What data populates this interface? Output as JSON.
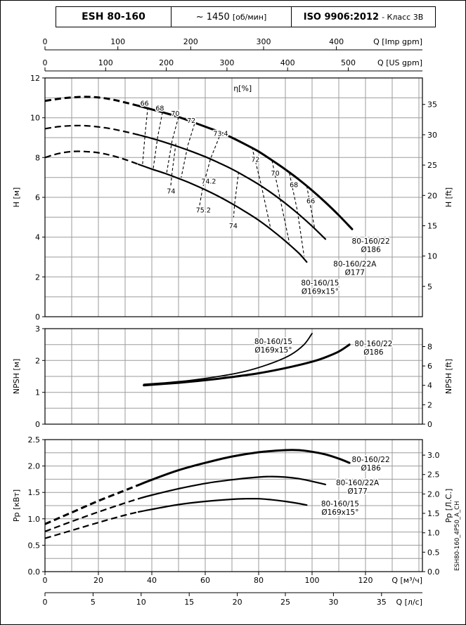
{
  "header": {
    "model": "ESH 80-160",
    "speed_value": "~ 1450",
    "speed_unit": "[об/мин]",
    "standard": "ISO 9906:2012",
    "standard_class": "- Класс 3В"
  },
  "side_label": "ESH80-160_4P50_A_CH",
  "axes": {
    "imp_gpm": {
      "label": "Q [Imp gpm]",
      "ticks": [
        0,
        100,
        200,
        300,
        400
      ],
      "m3h_per_unit": 0.272765
    },
    "us_gpm": {
      "label": "Q [US gpm]",
      "ticks": [
        0,
        100,
        200,
        300,
        400,
        500
      ],
      "m3h_per_unit": 0.227125
    },
    "m3h": {
      "label": "Q [м³/ч]",
      "ticks": [
        0,
        20,
        40,
        60,
        80,
        100,
        120
      ],
      "m3h_per_unit": 1
    },
    "l_s": {
      "label": "Q [л/с]",
      "ticks": [
        0,
        5,
        10,
        15,
        20,
        25,
        30,
        35
      ],
      "m3h_per_unit": 3.6
    }
  },
  "chart_data": [
    {
      "type": "line",
      "id": "head",
      "title": "Head vs flow, rotational speed ~1450 rpm",
      "x_unit": "м³/ч",
      "xlim": [
        0,
        141
      ],
      "ylabel_left": "H [м]",
      "ylabel_right": "H [ft]",
      "ylim": [
        0,
        12
      ],
      "yticks_left": [
        0,
        2,
        4,
        6,
        8,
        10,
        12
      ],
      "yticks_right": [
        5,
        10,
        15,
        20,
        25,
        30,
        35
      ],
      "right_unit_factor": 3.28084,
      "left_decimals": 0,
      "right_decimals": 0,
      "grid_step_y": 1,
      "grid_step_x_m3h": 10,
      "eta_axis_label": {
        "text": "η[%]",
        "q": 74,
        "v": 11.35
      },
      "series": [
        {
          "name": "80-160/22 Ø186",
          "label_lines": [
            "80-160/22",
            "Ø186"
          ],
          "label_at": [
            122,
            3.6
          ],
          "dash_until": 35,
          "width": 3,
          "points": [
            [
              0,
              10.85
            ],
            [
              5,
              10.95
            ],
            [
              10,
              11.02
            ],
            [
              15,
              11.05
            ],
            [
              20,
              11.02
            ],
            [
              25,
              10.92
            ],
            [
              30,
              10.77
            ],
            [
              35,
              10.6
            ],
            [
              40,
              10.42
            ],
            [
              45,
              10.24
            ],
            [
              50,
              10.04
            ],
            [
              55,
              9.8
            ],
            [
              60,
              9.55
            ],
            [
              65,
              9.3
            ],
            [
              70,
              9.0
            ],
            [
              75,
              8.66
            ],
            [
              80,
              8.3
            ],
            [
              85,
              7.86
            ],
            [
              90,
              7.4
            ],
            [
              95,
              6.9
            ],
            [
              100,
              6.35
            ],
            [
              105,
              5.75
            ],
            [
              110,
              5.1
            ],
            [
              115,
              4.4
            ]
          ]
        },
        {
          "name": "80-160/22A Ø177",
          "label_lines": [
            "80-160/22A",
            "Ø177"
          ],
          "label_at": [
            116,
            2.45
          ],
          "dash_until": 35,
          "width": 2.2,
          "points": [
            [
              0,
              9.45
            ],
            [
              5,
              9.55
            ],
            [
              10,
              9.6
            ],
            [
              15,
              9.6
            ],
            [
              20,
              9.54
            ],
            [
              25,
              9.44
            ],
            [
              30,
              9.3
            ],
            [
              35,
              9.14
            ],
            [
              40,
              8.96
            ],
            [
              45,
              8.76
            ],
            [
              50,
              8.54
            ],
            [
              55,
              8.3
            ],
            [
              60,
              8.04
            ],
            [
              65,
              7.74
            ],
            [
              70,
              7.42
            ],
            [
              75,
              7.05
            ],
            [
              80,
              6.65
            ],
            [
              85,
              6.2
            ],
            [
              90,
              5.7
            ],
            [
              95,
              5.15
            ],
            [
              100,
              4.55
            ],
            [
              105,
              3.9
            ]
          ]
        },
        {
          "name": "80-160/15 Ø169x15°",
          "label_lines": [
            "80-160/15",
            "Ø169x15°"
          ],
          "label_at": [
            103,
            1.5
          ],
          "dash_until": 35,
          "width": 2.2,
          "points": [
            [
              0,
              8.0
            ],
            [
              5,
              8.2
            ],
            [
              10,
              8.3
            ],
            [
              15,
              8.3
            ],
            [
              20,
              8.24
            ],
            [
              25,
              8.1
            ],
            [
              30,
              7.9
            ],
            [
              35,
              7.66
            ],
            [
              40,
              7.42
            ],
            [
              45,
              7.2
            ],
            [
              50,
              6.95
            ],
            [
              55,
              6.68
            ],
            [
              60,
              6.38
            ],
            [
              65,
              6.05
            ],
            [
              70,
              5.68
            ],
            [
              75,
              5.28
            ],
            [
              80,
              4.85
            ],
            [
              85,
              4.35
            ],
            [
              90,
              3.8
            ],
            [
              95,
              3.2
            ],
            [
              98,
              2.75
            ]
          ]
        }
      ],
      "efficiency_lines": [
        {
          "label": "66",
          "label_at": [
            37.3,
            10.72
          ],
          "points": [
            [
              38.5,
              10.52
            ],
            [
              37.5,
              9.2
            ],
            [
              36.5,
              7.62
            ]
          ]
        },
        {
          "label": "68",
          "label_at": [
            43,
            10.46
          ],
          "points": [
            [
              44,
              10.28
            ],
            [
              42.2,
              9.05
            ],
            [
              40.5,
              7.42
            ]
          ]
        },
        {
          "label": "70",
          "label_at": [
            48.8,
            10.2
          ],
          "points": [
            [
              50,
              10.04
            ],
            [
              47.6,
              8.85
            ],
            [
              45.5,
              7.18
            ]
          ]
        },
        {
          "label": "72",
          "label_at": [
            54.8,
            9.84
          ],
          "points": [
            [
              56,
              9.7
            ],
            [
              53.5,
              8.62
            ],
            [
              51,
              7.0
            ]
          ]
        },
        {
          "label": "73.4",
          "label_at": [
            65.8,
            9.2
          ],
          "points": [
            [
              66,
              9.28
            ],
            [
              62,
              7.95
            ],
            [
              59,
              6.45
            ],
            [
              57.5,
              5.3
            ]
          ]
        },
        {
          "label": "74.2",
          "label_at": [
            61.3,
            6.8
          ],
          "points": []
        },
        {
          "label": "75.2",
          "label_at": [
            59.3,
            5.35
          ],
          "points": []
        },
        {
          "label": "74",
          "label_at": [
            47.2,
            6.3
          ],
          "points": [
            [
              49,
              8.7
            ],
            [
              47.5,
              7.15
            ],
            [
              47.1,
              6.6
            ]
          ]
        },
        {
          "label": "74",
          "label_at": [
            70.5,
            4.55
          ],
          "points": [
            [
              72.5,
              7.28
            ],
            [
              71,
              5.66
            ],
            [
              70.6,
              5.0
            ]
          ]
        },
        {
          "label": "72",
          "label_at": [
            78.8,
            7.88
          ],
          "points": [
            [
              77.5,
              8.52
            ],
            [
              81,
              6.6
            ],
            [
              84.5,
              4.42
            ]
          ]
        },
        {
          "label": "70",
          "label_at": [
            86.2,
            7.2
          ],
          "points": [
            [
              85,
              7.85
            ],
            [
              88,
              5.95
            ],
            [
              91.5,
              3.72
            ]
          ]
        },
        {
          "label": "68",
          "label_at": [
            93.2,
            6.62
          ],
          "points": [
            [
              91.5,
              7.22
            ],
            [
              94.5,
              5.32
            ],
            [
              97,
              3.05
            ]
          ]
        },
        {
          "label": "66",
          "label_at": [
            99.5,
            5.8
          ],
          "points": [
            [
              98,
              6.58
            ],
            [
              101,
              4.42
            ]
          ]
        }
      ]
    },
    {
      "type": "line",
      "id": "npsh",
      "title": "NPSH vs flow",
      "x_unit": "м³/ч",
      "xlim": [
        0,
        141
      ],
      "ylabel_left": "NPSH [м]",
      "ylabel_right": "NPSH [ft]",
      "ylim": [
        0,
        3
      ],
      "yticks_left": [
        0,
        1,
        2,
        3
      ],
      "yticks_right": [
        0,
        2,
        4,
        6,
        8
      ],
      "right_unit_factor": 3.28084,
      "left_decimals": 0,
      "right_decimals": 0,
      "grid_step_y": 0.5,
      "grid_step_x_m3h": 10,
      "series": [
        {
          "name": "80-160/15 Ø169x15°",
          "label_lines": [
            "80-160/15",
            "Ø169x15°"
          ],
          "label_at": [
            85.5,
            2.47
          ],
          "width": 1.8,
          "points": [
            [
              37,
              1.25
            ],
            [
              45,
              1.3
            ],
            [
              55,
              1.38
            ],
            [
              65,
              1.5
            ],
            [
              75,
              1.66
            ],
            [
              85,
              1.92
            ],
            [
              92,
              2.18
            ],
            [
              97,
              2.5
            ],
            [
              100,
              2.85
            ]
          ]
        },
        {
          "name": "80-160/22 Ø186",
          "label_lines": [
            "80-160/22",
            "Ø186"
          ],
          "label_at": [
            123,
            2.4
          ],
          "width": 3,
          "points": [
            [
              37,
              1.22
            ],
            [
              50,
              1.3
            ],
            [
              60,
              1.38
            ],
            [
              70,
              1.48
            ],
            [
              80,
              1.6
            ],
            [
              90,
              1.76
            ],
            [
              100,
              1.96
            ],
            [
              105,
              2.1
            ],
            [
              110,
              2.28
            ],
            [
              114,
              2.5
            ]
          ]
        }
      ],
      "efficiency_lines": []
    },
    {
      "type": "line",
      "id": "power",
      "title": "Shaft power vs flow",
      "x_unit": "м³/ч",
      "xlim": [
        0,
        141
      ],
      "ylabel_left": "Pp [кВт]",
      "ylabel_right": "Pp [Л.С.]",
      "ylim": [
        0,
        2.5
      ],
      "yticks_left": [
        0,
        0.5,
        1,
        1.5,
        2,
        2.5
      ],
      "yticks_right": [
        0,
        0.5,
        1,
        1.5,
        2,
        2.5,
        3
      ],
      "right_unit_factor": 1.35962,
      "left_decimals": 1,
      "right_decimals": 1,
      "grid_step_y": 0.25,
      "grid_step_x_m3h": 10,
      "series": [
        {
          "name": "80-160/22 Ø186",
          "label_lines": [
            "80-160/22",
            "Ø186"
          ],
          "label_at": [
            122,
            2.05
          ],
          "dash_until": 35,
          "width": 3,
          "points": [
            [
              0,
              0.9
            ],
            [
              10,
              1.12
            ],
            [
              20,
              1.34
            ],
            [
              30,
              1.54
            ],
            [
              35,
              1.64
            ],
            [
              40,
              1.74
            ],
            [
              50,
              1.92
            ],
            [
              60,
              2.06
            ],
            [
              70,
              2.18
            ],
            [
              80,
              2.26
            ],
            [
              90,
              2.3
            ],
            [
              95,
              2.3
            ],
            [
              100,
              2.27
            ],
            [
              105,
              2.22
            ],
            [
              110,
              2.14
            ],
            [
              114,
              2.06
            ]
          ]
        },
        {
          "name": "80-160/22A Ø177",
          "label_lines": [
            "80-160/22A",
            "Ø177"
          ],
          "label_at": [
            117,
            1.61
          ],
          "dash_until": 35,
          "width": 2.2,
          "points": [
            [
              0,
              0.76
            ],
            [
              10,
              0.95
            ],
            [
              20,
              1.13
            ],
            [
              30,
              1.3
            ],
            [
              35,
              1.38
            ],
            [
              40,
              1.45
            ],
            [
              50,
              1.57
            ],
            [
              60,
              1.67
            ],
            [
              70,
              1.74
            ],
            [
              80,
              1.79
            ],
            [
              85,
              1.8
            ],
            [
              90,
              1.79
            ],
            [
              95,
              1.76
            ],
            [
              100,
              1.71
            ],
            [
              105,
              1.65
            ]
          ]
        },
        {
          "name": "80-160/15 Ø169x15°",
          "label_lines": [
            "80-160/15",
            "Ø169x15°"
          ],
          "label_at": [
            110.5,
            1.21
          ],
          "dash_until": 35,
          "width": 2.2,
          "points": [
            [
              0,
              0.63
            ],
            [
              10,
              0.78
            ],
            [
              20,
              0.93
            ],
            [
              30,
              1.07
            ],
            [
              35,
              1.13
            ],
            [
              40,
              1.18
            ],
            [
              50,
              1.27
            ],
            [
              60,
              1.33
            ],
            [
              70,
              1.37
            ],
            [
              75,
              1.38
            ],
            [
              80,
              1.38
            ],
            [
              85,
              1.36
            ],
            [
              90,
              1.33
            ],
            [
              95,
              1.29
            ],
            [
              98,
              1.26
            ]
          ]
        }
      ],
      "efficiency_lines": []
    }
  ]
}
